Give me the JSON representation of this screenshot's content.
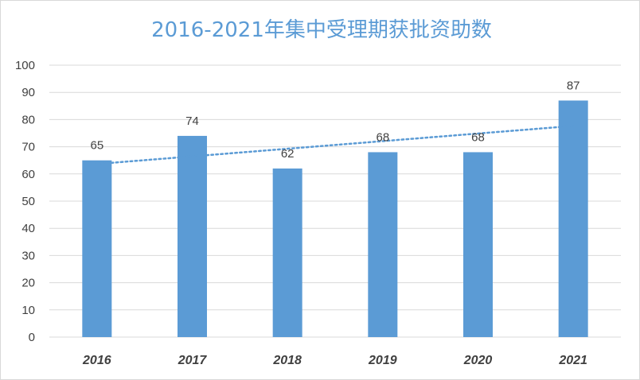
{
  "chart_data": {
    "type": "bar",
    "title": "2016-2021年集中受理期获批资助数",
    "categories": [
      "2016",
      "2017",
      "2018",
      "2019",
      "2020",
      "2021"
    ],
    "values": [
      65,
      74,
      62,
      68,
      68,
      87
    ],
    "data_labels": [
      "65",
      "74",
      "62",
      "68",
      "68",
      "87"
    ],
    "ylim": [
      0,
      100
    ],
    "yticks": [
      "0",
      "10",
      "20",
      "30",
      "40",
      "50",
      "60",
      "70",
      "80",
      "90",
      "100"
    ],
    "xlabel": "",
    "ylabel": "",
    "grid": true,
    "trendline": "linear",
    "colors": {
      "bar": "#5b9bd5",
      "trendline": "#5b9bd5",
      "grid": "#d9d9d9",
      "title": "#5b9bd5",
      "text": "#404040"
    }
  }
}
